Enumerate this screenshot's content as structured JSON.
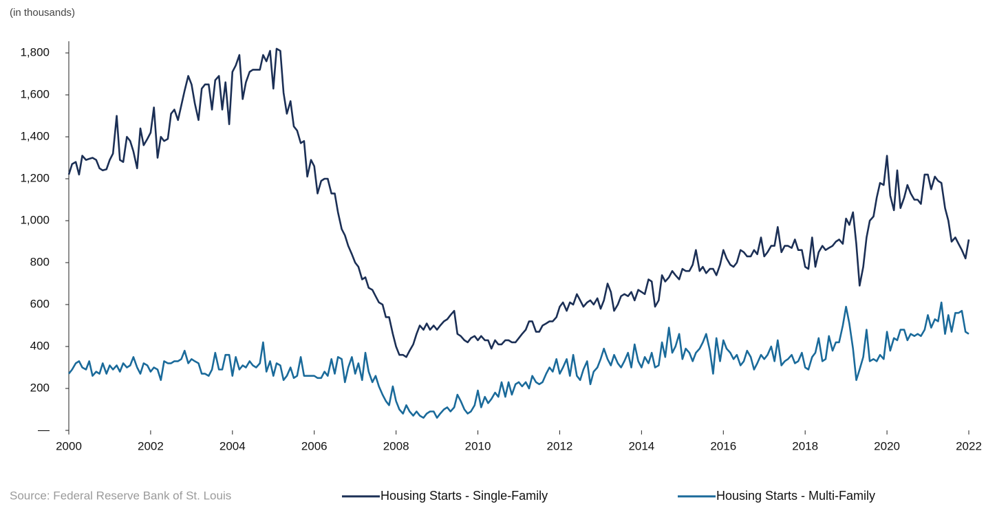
{
  "chart_data": {
    "type": "line",
    "subtitle": "(in thousands)",
    "source": "Source: Federal Reserve Bank of St. Louis",
    "legend": "bottom",
    "xlim": [
      2000,
      2022
    ],
    "xticks": [
      2000,
      2002,
      2004,
      2006,
      2008,
      2010,
      2012,
      2014,
      2016,
      2018,
      2020,
      2022
    ],
    "ylim": [
      0,
      1800
    ],
    "yticks": [
      {
        "value": 0,
        "label": "—"
      },
      200,
      400,
      600,
      800,
      {
        "value": 1000,
        "label": "1,000"
      },
      {
        "value": 1200,
        "label": "1,200"
      },
      {
        "value": 1400,
        "label": "1,400"
      },
      {
        "value": 1600,
        "label": "1,600"
      },
      {
        "value": 1800,
        "label": "1,800"
      }
    ],
    "x": [
      2000,
      2000.08,
      2000.17,
      2000.25,
      2000.33,
      2000.42,
      2000.5,
      2000.58,
      2000.67,
      2000.75,
      2000.83,
      2000.92,
      2001,
      2001.08,
      2001.17,
      2001.25,
      2001.33,
      2001.42,
      2001.5,
      2001.58,
      2001.67,
      2001.75,
      2001.83,
      2001.92,
      2002,
      2002.08,
      2002.17,
      2002.25,
      2002.33,
      2002.42,
      2002.5,
      2002.58,
      2002.67,
      2002.75,
      2002.83,
      2002.92,
      2003,
      2003.08,
      2003.17,
      2003.25,
      2003.33,
      2003.42,
      2003.5,
      2003.58,
      2003.67,
      2003.75,
      2003.83,
      2003.92,
      2004,
      2004.08,
      2004.17,
      2004.25,
      2004.33,
      2004.42,
      2004.5,
      2004.58,
      2004.67,
      2004.75,
      2004.83,
      2004.92,
      2005,
      2005.08,
      2005.17,
      2005.25,
      2005.33,
      2005.42,
      2005.5,
      2005.58,
      2005.67,
      2005.75,
      2005.83,
      2005.92,
      2006,
      2006.08,
      2006.17,
      2006.25,
      2006.33,
      2006.42,
      2006.5,
      2006.58,
      2006.67,
      2006.75,
      2006.83,
      2006.92,
      2007,
      2007.08,
      2007.17,
      2007.25,
      2007.33,
      2007.42,
      2007.5,
      2007.58,
      2007.67,
      2007.75,
      2007.83,
      2007.92,
      2008,
      2008.08,
      2008.17,
      2008.25,
      2008.33,
      2008.42,
      2008.5,
      2008.58,
      2008.67,
      2008.75,
      2008.83,
      2008.92,
      2009,
      2009.08,
      2009.17,
      2009.25,
      2009.33,
      2009.42,
      2009.5,
      2009.58,
      2009.67,
      2009.75,
      2009.83,
      2009.92,
      2010,
      2010.08,
      2010.17,
      2010.25,
      2010.33,
      2010.42,
      2010.5,
      2010.58,
      2010.67,
      2010.75,
      2010.83,
      2010.92,
      2011,
      2011.08,
      2011.17,
      2011.25,
      2011.33,
      2011.42,
      2011.5,
      2011.58,
      2011.67,
      2011.75,
      2011.83,
      2011.92,
      2012,
      2012.08,
      2012.17,
      2012.25,
      2012.33,
      2012.42,
      2012.5,
      2012.58,
      2012.67,
      2012.75,
      2012.83,
      2012.92,
      2013,
      2013.08,
      2013.17,
      2013.25,
      2013.33,
      2013.42,
      2013.5,
      2013.58,
      2013.67,
      2013.75,
      2013.83,
      2013.92,
      2014,
      2014.08,
      2014.17,
      2014.25,
      2014.33,
      2014.42,
      2014.5,
      2014.58,
      2014.67,
      2014.75,
      2014.83,
      2014.92,
      2015,
      2015.08,
      2015.17,
      2015.25,
      2015.33,
      2015.42,
      2015.5,
      2015.58,
      2015.67,
      2015.75,
      2015.83,
      2015.92,
      2016,
      2016.08,
      2016.17,
      2016.25,
      2016.33,
      2016.42,
      2016.5,
      2016.58,
      2016.67,
      2016.75,
      2016.83,
      2016.92,
      2017,
      2017.08,
      2017.17,
      2017.25,
      2017.33,
      2017.42,
      2017.5,
      2017.58,
      2017.67,
      2017.75,
      2017.83,
      2017.92,
      2018,
      2018.08,
      2018.17,
      2018.25,
      2018.33,
      2018.42,
      2018.5,
      2018.58,
      2018.67,
      2018.75,
      2018.83,
      2018.92,
      2019,
      2019.08,
      2019.17,
      2019.25,
      2019.33,
      2019.42,
      2019.5,
      2019.58,
      2019.67,
      2019.75,
      2019.83,
      2019.92,
      2020,
      2020.08,
      2020.17,
      2020.25,
      2020.33,
      2020.42,
      2020.5,
      2020.58,
      2020.67,
      2020.75,
      2020.83,
      2020.92,
      2021,
      2021.08,
      2021.17,
      2021.25,
      2021.33,
      2021.42,
      2021.5,
      2021.58,
      2021.67,
      2021.75,
      2021.83,
      2021.92,
      2022
    ],
    "series": [
      {
        "name": "Housing Starts - Single-Family",
        "color": "#1b2f55",
        "values": [
          1220,
          1270,
          1280,
          1220,
          1310,
          1290,
          1295,
          1300,
          1290,
          1250,
          1240,
          1245,
          1290,
          1320,
          1500,
          1290,
          1280,
          1400,
          1380,
          1330,
          1250,
          1440,
          1360,
          1390,
          1420,
          1540,
          1300,
          1400,
          1380,
          1390,
          1510,
          1530,
          1480,
          1550,
          1620,
          1690,
          1650,
          1560,
          1480,
          1630,
          1650,
          1650,
          1530,
          1670,
          1690,
          1530,
          1660,
          1460,
          1710,
          1740,
          1790,
          1580,
          1660,
          1710,
          1720,
          1720,
          1720,
          1790,
          1760,
          1810,
          1630,
          1820,
          1810,
          1610,
          1510,
          1570,
          1450,
          1430,
          1370,
          1380,
          1210,
          1290,
          1260,
          1130,
          1190,
          1200,
          1200,
          1130,
          1130,
          1040,
          960,
          930,
          880,
          840,
          800,
          780,
          720,
          730,
          680,
          670,
          640,
          610,
          600,
          540,
          540,
          460,
          400,
          360,
          360,
          350,
          380,
          410,
          460,
          500,
          480,
          510,
          480,
          500,
          480,
          500,
          520,
          530,
          550,
          570,
          460,
          450,
          430,
          420,
          440,
          450,
          430,
          450,
          430,
          430,
          390,
          430,
          410,
          410,
          430,
          430,
          420,
          420,
          440,
          460,
          480,
          520,
          520,
          470,
          470,
          500,
          510,
          520,
          520,
          540,
          590,
          610,
          570,
          610,
          600,
          650,
          620,
          590,
          610,
          620,
          600,
          630,
          580,
          620,
          700,
          660,
          570,
          600,
          640,
          650,
          640,
          660,
          620,
          670,
          660,
          650,
          720,
          710,
          590,
          620,
          740,
          710,
          730,
          760,
          740,
          720,
          770,
          760,
          760,
          790,
          860,
          760,
          780,
          750,
          770,
          770,
          740,
          790,
          860,
          820,
          790,
          780,
          800,
          860,
          850,
          830,
          830,
          860,
          840,
          920,
          830,
          850,
          880,
          880,
          970,
          850,
          880,
          880,
          870,
          910,
          860,
          860,
          780,
          770,
          920,
          780,
          850,
          880,
          860,
          870,
          880,
          900,
          910,
          890,
          1010,
          980,
          1040,
          890,
          690,
          780,
          920,
          1000,
          1020,
          1110,
          1180,
          1170,
          1310,
          1120,
          1050,
          1240,
          1060,
          1110,
          1170,
          1130,
          1100,
          1100,
          1080,
          1220,
          1220,
          1150,
          1210,
          1190,
          1180,
          1060,
          1000,
          900,
          920,
          890,
          860,
          820,
          910
        ]
      },
      {
        "name": "Housing Starts - Multi-Family",
        "color": "#1a6a9a",
        "values": [
          270,
          290,
          320,
          330,
          300,
          290,
          330,
          260,
          280,
          270,
          320,
          270,
          310,
          290,
          310,
          280,
          320,
          300,
          310,
          350,
          300,
          270,
          320,
          310,
          280,
          300,
          290,
          240,
          330,
          320,
          320,
          330,
          330,
          340,
          380,
          320,
          340,
          330,
          320,
          270,
          270,
          260,
          290,
          370,
          290,
          290,
          360,
          360,
          260,
          350,
          290,
          310,
          300,
          330,
          310,
          300,
          320,
          420,
          280,
          330,
          260,
          320,
          310,
          240,
          260,
          300,
          250,
          260,
          350,
          260,
          260,
          260,
          260,
          250,
          250,
          280,
          260,
          340,
          270,
          350,
          340,
          230,
          300,
          350,
          270,
          320,
          240,
          370,
          280,
          230,
          260,
          210,
          170,
          140,
          120,
          210,
          140,
          100,
          80,
          120,
          90,
          70,
          90,
          70,
          60,
          80,
          90,
          90,
          60,
          80,
          100,
          110,
          90,
          110,
          170,
          140,
          100,
          80,
          90,
          120,
          190,
          110,
          160,
          130,
          150,
          180,
          160,
          230,
          160,
          230,
          170,
          220,
          230,
          210,
          230,
          200,
          260,
          230,
          220,
          230,
          270,
          300,
          280,
          340,
          270,
          300,
          340,
          260,
          360,
          260,
          240,
          290,
          330,
          220,
          280,
          300,
          340,
          390,
          340,
          310,
          360,
          320,
          300,
          330,
          370,
          300,
          410,
          330,
          300,
          350,
          320,
          370,
          300,
          310,
          420,
          350,
          490,
          370,
          400,
          460,
          340,
          390,
          370,
          330,
          370,
          390,
          420,
          460,
          380,
          270,
          440,
          330,
          430,
          390,
          370,
          340,
          360,
          310,
          330,
          380,
          350,
          290,
          320,
          360,
          340,
          360,
          400,
          330,
          430,
          310,
          330,
          340,
          360,
          320,
          330,
          370,
          300,
          290,
          350,
          370,
          440,
          330,
          340,
          450,
          380,
          420,
          420,
          500,
          590,
          510,
          390,
          240,
          290,
          350,
          480,
          330,
          340,
          330,
          360,
          340,
          470,
          380,
          440,
          430,
          480,
          480,
          430,
          460,
          450,
          460,
          450,
          480,
          550,
          490,
          530,
          520,
          610,
          460,
          550,
          470,
          560,
          560,
          570,
          470,
          460
        ]
      }
    ]
  }
}
